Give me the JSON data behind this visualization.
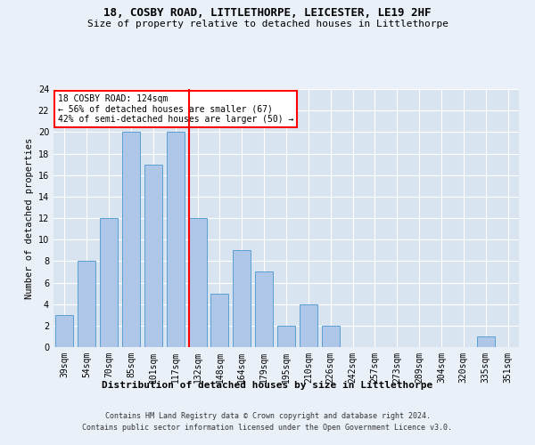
{
  "title1": "18, COSBY ROAD, LITTLETHORPE, LEICESTER, LE19 2HF",
  "title2": "Size of property relative to detached houses in Littlethorpe",
  "xlabel": "Distribution of detached houses by size in Littlethorpe",
  "ylabel": "Number of detached properties",
  "categories": [
    "39sqm",
    "54sqm",
    "70sqm",
    "85sqm",
    "101sqm",
    "117sqm",
    "132sqm",
    "148sqm",
    "164sqm",
    "179sqm",
    "195sqm",
    "210sqm",
    "226sqm",
    "242sqm",
    "257sqm",
    "273sqm",
    "289sqm",
    "304sqm",
    "320sqm",
    "335sqm",
    "351sqm"
  ],
  "values": [
    3,
    8,
    12,
    20,
    17,
    20,
    12,
    5,
    9,
    7,
    2,
    4,
    2,
    0,
    0,
    0,
    0,
    0,
    0,
    1,
    0
  ],
  "bar_color": "#aec6e8",
  "bar_edge_color": "#5a9fd4",
  "red_line_index": 6,
  "annotation_lines": [
    "18 COSBY ROAD: 124sqm",
    "← 56% of detached houses are smaller (67)",
    "42% of semi-detached houses are larger (50) →"
  ],
  "ylim": [
    0,
    24
  ],
  "yticks": [
    0,
    2,
    4,
    6,
    8,
    10,
    12,
    14,
    16,
    18,
    20,
    22,
    24
  ],
  "footer1": "Contains HM Land Registry data © Crown copyright and database right 2024.",
  "footer2": "Contains public sector information licensed under the Open Government Licence v3.0.",
  "bg_color": "#eaf0f8",
  "plot_bg_color": "#d8e4f0",
  "title1_fontsize": 9,
  "title2_fontsize": 8,
  "ylabel_fontsize": 7.5,
  "xlabel_fontsize": 8,
  "tick_fontsize": 7,
  "annotation_fontsize": 7,
  "footer_fontsize": 6
}
